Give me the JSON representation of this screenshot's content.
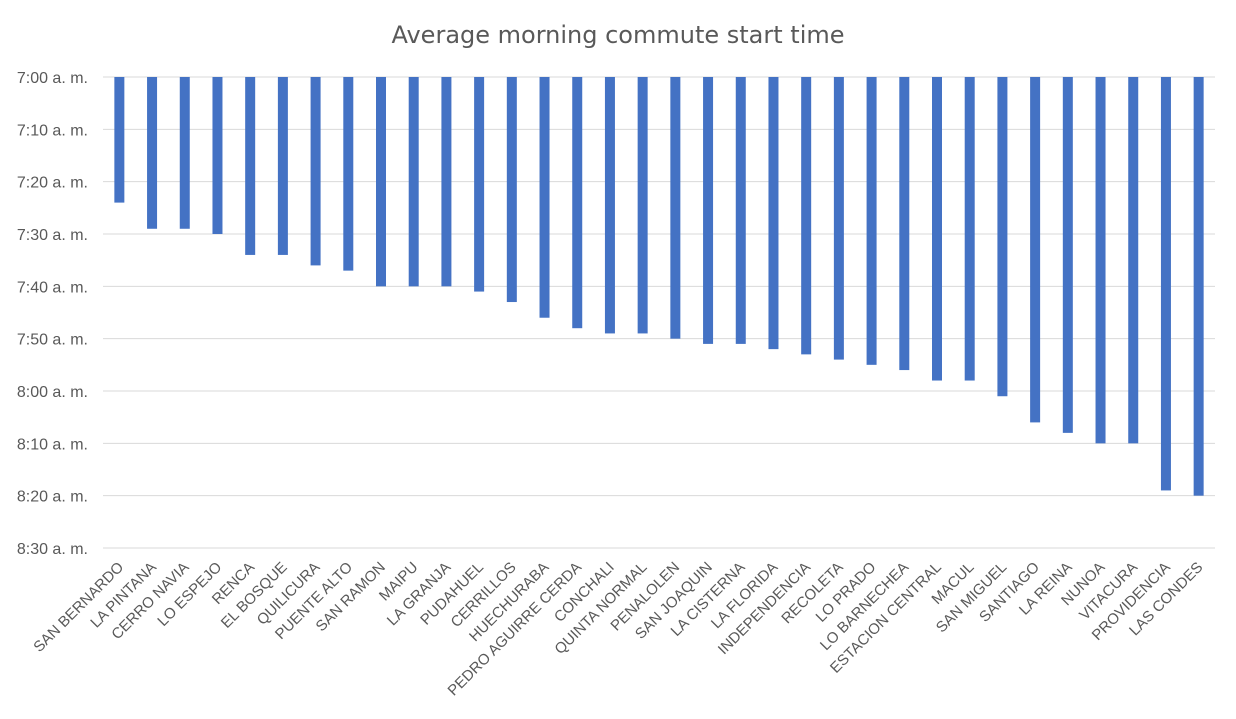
{
  "chart_data": {
    "type": "bar",
    "title": "Average morning commute start time",
    "xlabel": "",
    "ylabel": "",
    "y_axis_reversed": true,
    "y_unit": "minutes after 7:00 a. m.",
    "ylim": [
      0,
      90
    ],
    "y_ticks": [
      {
        "value": 0,
        "label": "7:00 a. m."
      },
      {
        "value": 10,
        "label": "7:10 a. m."
      },
      {
        "value": 20,
        "label": "7:20 a. m."
      },
      {
        "value": 30,
        "label": "7:30 a. m."
      },
      {
        "value": 40,
        "label": "7:40 a. m."
      },
      {
        "value": 50,
        "label": "7:50 a. m."
      },
      {
        "value": 60,
        "label": "8:00 a. m."
      },
      {
        "value": 70,
        "label": "8:10 a. m."
      },
      {
        "value": 80,
        "label": "8:20 a. m."
      },
      {
        "value": 90,
        "label": "8:30 a. m."
      }
    ],
    "grid": true,
    "legend": "none",
    "bar_color": "#4472c4",
    "categories": [
      "SAN BERNARDO",
      "LA PINTANA",
      "CERRO NAVIA",
      "LO ESPEJO",
      "RENCA",
      "EL BOSQUE",
      "QUILICURA",
      "PUENTE ALTO",
      "SAN RAMON",
      "MAIPU",
      "LA GRANJA",
      "PUDAHUEL",
      "CERRILLOS",
      "HUECHURABA",
      "PEDRO AGUIRRE CERDA",
      "CONCHALI",
      "QUINTA NORMAL",
      "PENALOLEN",
      "SAN JOAQUIN",
      "LA CISTERNA",
      "LA FLORIDA",
      "INDEPENDENCIA",
      "RECOLETA",
      "LO PRADO",
      "LO BARNECHEA",
      "ESTACION CENTRAL",
      "MACUL",
      "SAN MIGUEL",
      "SANTIAGO",
      "LA REINA",
      "NUNOA",
      "VITACURA",
      "PROVIDENCIA",
      "LAS CONDES"
    ],
    "values": [
      24,
      29,
      29,
      30,
      34,
      34,
      36,
      37,
      40,
      40,
      40,
      41,
      43,
      46,
      48,
      49,
      49,
      50,
      51,
      51,
      52,
      53,
      54,
      55,
      56,
      58,
      58,
      61,
      66,
      68,
      70,
      70,
      79,
      80
    ]
  }
}
